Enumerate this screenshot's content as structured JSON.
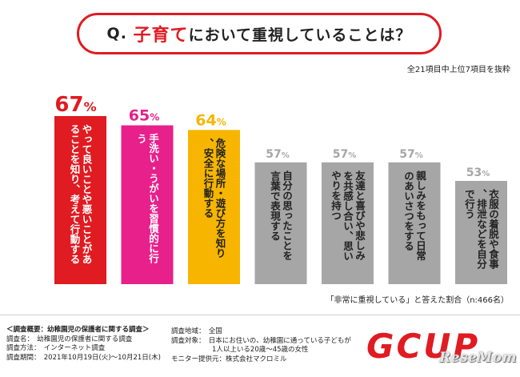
{
  "title": {
    "prefix": "Q.",
    "accent": "子育て",
    "rest": "において重視していることは？"
  },
  "subnote": "全21項目中上位7項目を抜粋",
  "footnote": "「非常に重視している」と答えた割合（n:466名）",
  "colors": {
    "red": "#e01b22",
    "pink": "#e8208c",
    "yellow": "#f7b500",
    "gray": "#a6a6a6"
  },
  "chart_data": {
    "type": "bar",
    "categories": [
      "やって良いことや悪いことがあることを知り、考えて行動する",
      "手洗い・うがいを習慣的に行う",
      "危険な場所・遊び方を知り、安全に行動する",
      "自分の思ったことを言葉で表現する",
      "友達と喜びや悲しみを共感し合い、思いやりを持つ",
      "親しみをもって日常のあいさつをする",
      "衣服の着脱や食事、排泄などを自分で行う"
    ],
    "values": [
      67,
      65,
      64,
      57,
      57,
      57,
      53
    ],
    "value_labels": [
      "67%",
      "65%",
      "64%",
      "57%",
      "57%",
      "57%",
      "53%"
    ],
    "bar_colors": [
      "#e01b22",
      "#e8208c",
      "#f7b500",
      "#a6a6a6",
      "#a6a6a6",
      "#a6a6a6",
      "#a6a6a6"
    ],
    "unit": "%"
  },
  "survey": {
    "heading": "＜調査概要：幼稚園児の保護者に関する調査＞",
    "name": "調査名：　幼稚園児の保護者に関する調査",
    "method": "調査方法：　インターネット調査",
    "period": "調査期間：　2021年10月19日(火)～10月21日(木)",
    "region": "調査地域：　全国",
    "target1": "調査対象：　日本にお住いの、幼稚園に通っている子どもが",
    "target2": "　　　　　　1人以上いる20歳～45歳の女性",
    "provider": "モニター提供元：株式会社マクロミル"
  },
  "logo": "GCUP",
  "watermark": "ReseMom"
}
